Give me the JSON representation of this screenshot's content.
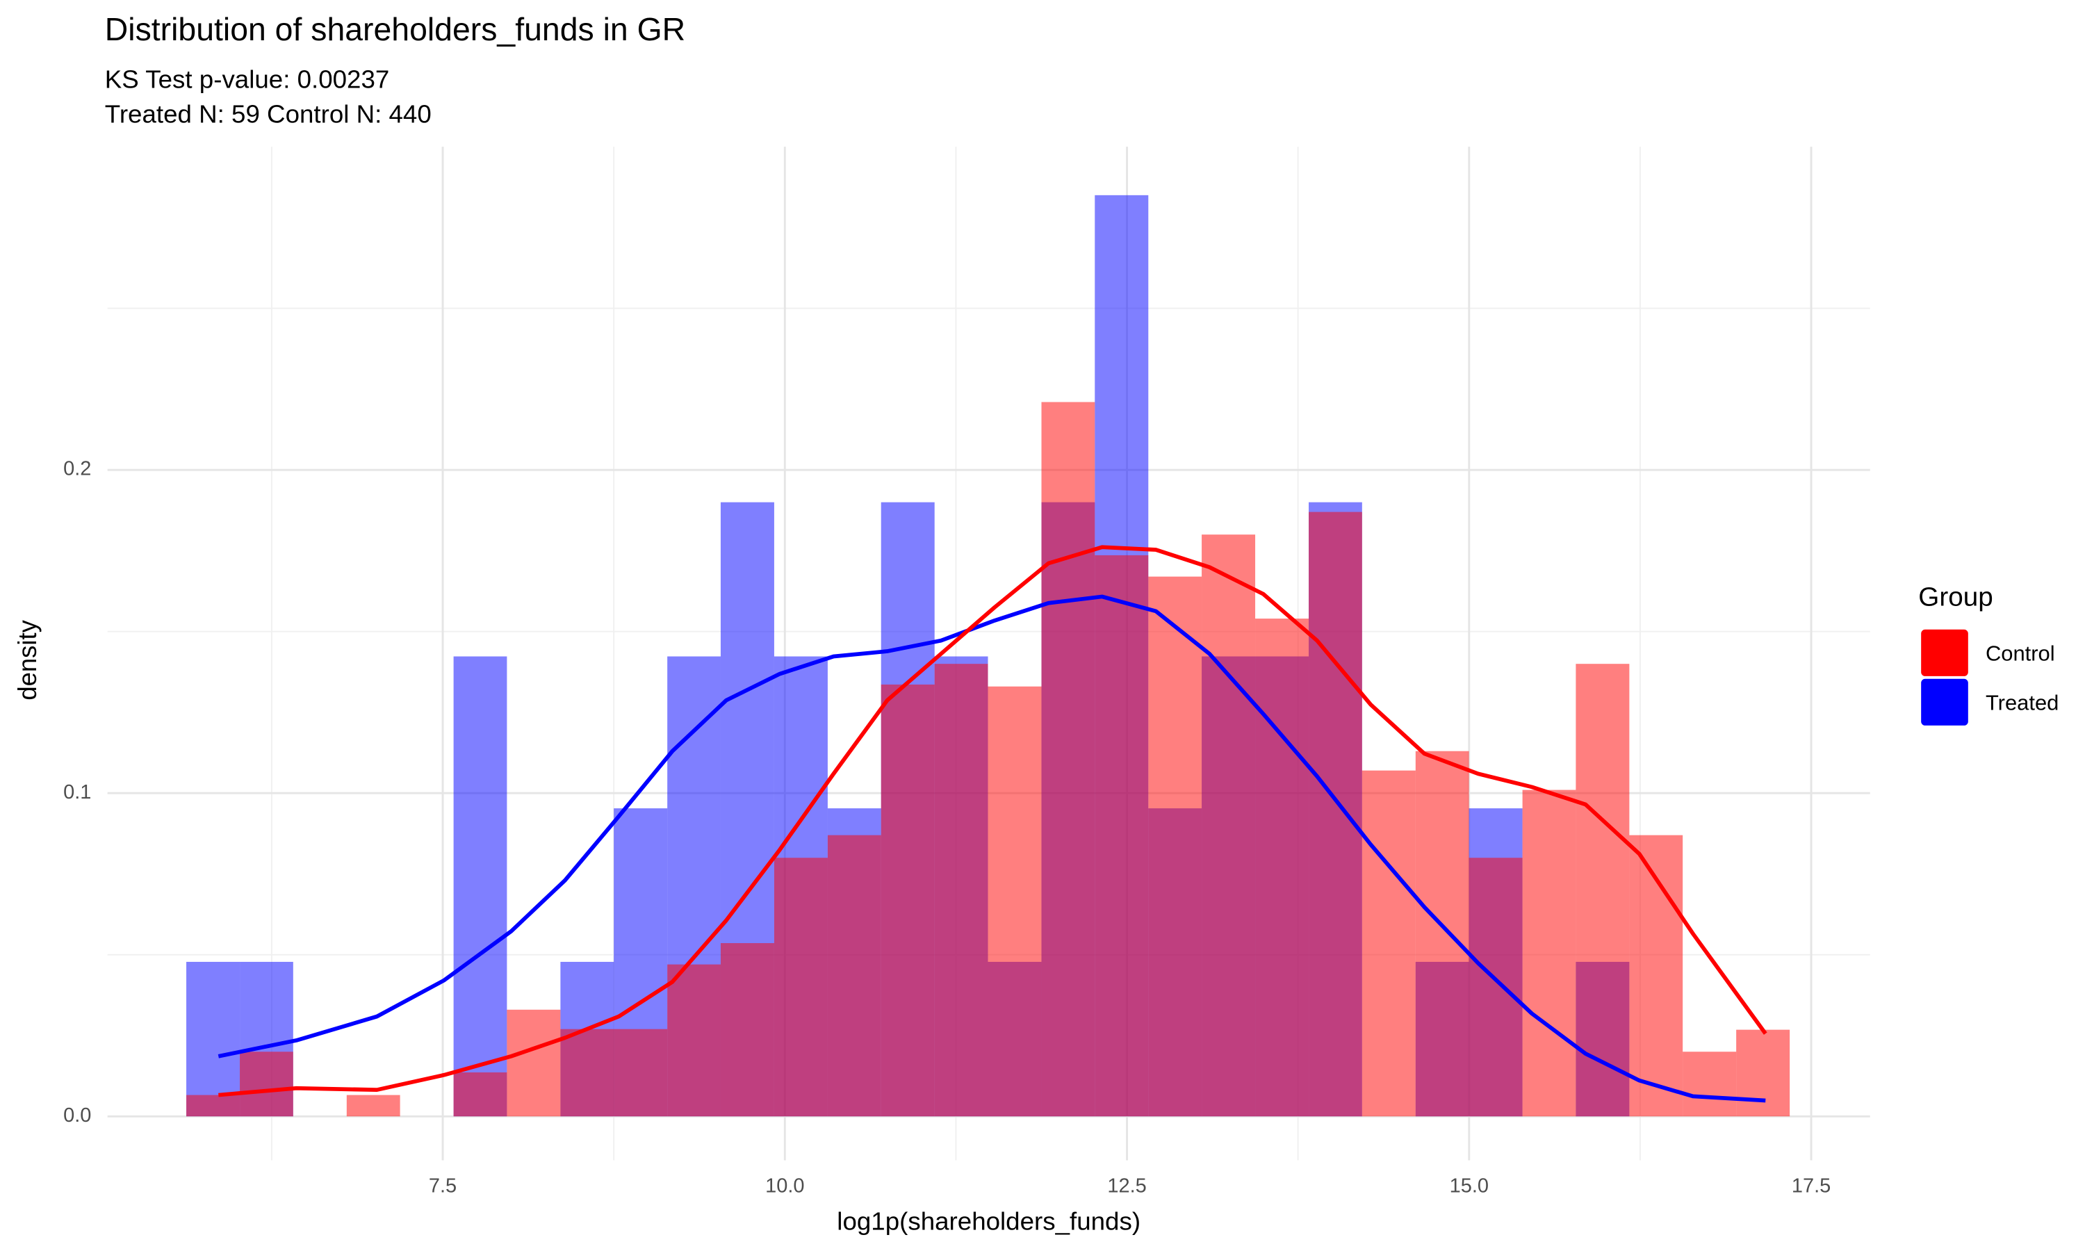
{
  "chart_data": {
    "type": "histogram",
    "title": "Distribution of shareholders_funds in GR",
    "subtitle": [
      "KS Test p-value: 0.00237",
      "Treated N: 59 Control N: 440"
    ],
    "x_label": "log1p(shareholders_funds)",
    "y_label": "density",
    "legend_title": "Group",
    "legend_position": "right",
    "grid": true,
    "opacity": 0.5,
    "xlim": [
      5.05,
      17.93
    ],
    "ylim": [
      -0.0136,
      0.3
    ],
    "xticks": [
      7.5,
      {
        "value": 10,
        "label": "10.0"
      },
      12.5,
      {
        "value": 15,
        "label": "15.0"
      },
      17.5
    ],
    "yticks": [
      {
        "value": 0,
        "label": "0.0"
      },
      0.1,
      0.2
    ],
    "x_minor_ticks": [
      6.25,
      8.75,
      11.25,
      13.75,
      16.25
    ],
    "y_minor_ticks": [
      0.05,
      0.15,
      0.25
    ],
    "bins": [
      5.626,
      6.017,
      6.407,
      6.798,
      7.188,
      7.579,
      7.969,
      8.36,
      8.75,
      9.141,
      9.531,
      9.922,
      10.313,
      10.703,
      11.094,
      11.484,
      11.875,
      12.265,
      12.656,
      13.046,
      13.437,
      13.828,
      14.218,
      14.609,
      14.999,
      15.39,
      15.78,
      16.171,
      16.561,
      16.952,
      17.343
    ],
    "series": [
      {
        "name": "Treated",
        "color": "#0000ff",
        "values": [
          0.0478,
          0.0478,
          0,
          0,
          0,
          0.1423,
          0,
          0.0478,
          0.0953,
          0.1423,
          0.19,
          0.1423,
          0.0953,
          0.19,
          0.1423,
          0.0478,
          0.19,
          0.285,
          0.0953,
          0.1423,
          0.1423,
          0.19,
          0,
          0.0478,
          0.0953,
          0,
          0.0478,
          0,
          0,
          0
        ]
      },
      {
        "name": "Control",
        "color": "#ff0000",
        "values": [
          0.0066,
          0.02,
          0,
          0.0066,
          0,
          0.0136,
          0.033,
          0.027,
          0.027,
          0.047,
          0.0536,
          0.08,
          0.087,
          0.1336,
          0.14,
          0.133,
          0.221,
          0.1736,
          0.167,
          0.18,
          0.154,
          0.187,
          0.107,
          0.113,
          0.08,
          0.101,
          0.14,
          0.087,
          0.02,
          0.0268
        ]
      }
    ],
    "curves": [
      {
        "name": "Treated",
        "color": "#0000ff",
        "x": [
          5.861,
          6.43,
          7.019,
          7.51,
          8.001,
          8.393,
          8.786,
          9.178,
          9.571,
          9.963,
          10.356,
          10.748,
          11.141,
          11.533,
          11.926,
          12.318,
          12.711,
          13.103,
          13.496,
          13.889,
          14.281,
          14.674,
          15.066,
          15.459,
          15.851,
          16.244,
          16.636,
          17.166
        ],
        "values": [
          0.0186,
          0.0235,
          0.0309,
          0.0421,
          0.0573,
          0.073,
          0.0928,
          0.113,
          0.1287,
          0.1369,
          0.1423,
          0.1439,
          0.1472,
          0.1534,
          0.1588,
          0.1608,
          0.1563,
          0.1431,
          0.1245,
          0.1052,
          0.0841,
          0.0647,
          0.0474,
          0.0318,
          0.0194,
          0.0111,
          0.0062,
          0.0049
        ]
      },
      {
        "name": "Control",
        "color": "#ff0000",
        "x": [
          5.861,
          6.43,
          7.019,
          7.51,
          8.001,
          8.393,
          8.786,
          9.178,
          9.571,
          9.963,
          10.356,
          10.748,
          11.141,
          11.533,
          11.926,
          12.318,
          12.711,
          13.103,
          13.496,
          13.889,
          14.281,
          14.674,
          15.066,
          15.459,
          15.851,
          16.244,
          16.636,
          17.166
        ],
        "values": [
          0.0066,
          0.0087,
          0.0082,
          0.0128,
          0.0186,
          0.0243,
          0.0309,
          0.0416,
          0.0606,
          0.0825,
          0.106,
          0.1287,
          0.1431,
          0.1575,
          0.1711,
          0.1761,
          0.1753,
          0.1699,
          0.1616,
          0.1472,
          0.1274,
          0.1122,
          0.106,
          0.1019,
          0.0965,
          0.0812,
          0.0565,
          0.0256
        ]
      }
    ],
    "legend_order": [
      1,
      0
    ]
  }
}
